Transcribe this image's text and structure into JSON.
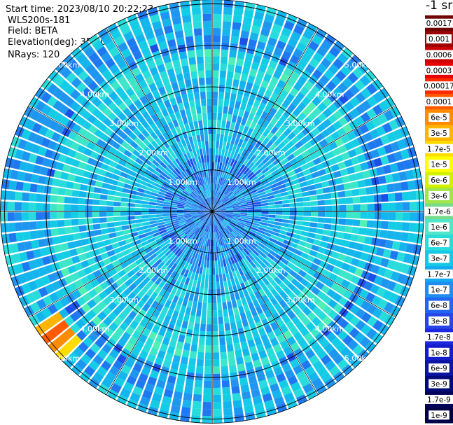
{
  "header": {
    "start_time": "Start time: 2023/08/10 20:22:23",
    "instrument": "WLS200s-181",
    "field": "Field: BETA",
    "elevation": "Elevation(deg): 35.30",
    "nrays": "NRays: 120"
  },
  "colorbar": {
    "title": "-1 sr",
    "labels": [
      "0.0017",
      "0.001",
      "0.0006",
      "0.0003",
      "0.00017",
      "0.0001",
      "6e-5",
      "3e-5",
      "1.7e-5",
      "1e-5",
      "6e-6",
      "3e-6",
      "1.7e-6",
      "1e-6",
      "6e-7",
      "3e-7",
      "1.7e-7",
      "1e-7",
      "6e-8",
      "3e-8",
      "1.7e-8",
      "1e-8",
      "6e-9",
      "3e-9",
      "1.7e-9",
      "1e-9"
    ],
    "colors": [
      "#6e0000",
      "#9c0000",
      "#c80000",
      "#e60000",
      "#ff2a00",
      "#ff5a00",
      "#ff8c00",
      "#ffb400",
      "#ffdc00",
      "#ffff00",
      "#d2f000",
      "#a0e64b",
      "#78dc8c",
      "#50e6c8",
      "#28dcdc",
      "#14c8e6",
      "#14aaf0",
      "#1e8cf0",
      "#2364f0",
      "#2846e6",
      "#1e28dc",
      "#141ec8",
      "#0a14a0",
      "#000a78",
      "#00005a",
      "#000046"
    ]
  },
  "chart_data": {
    "type": "heatmap",
    "projection": "polar-ppi",
    "field": "BETA",
    "units": "-1 sr",
    "elevation_deg": 35.3,
    "nrays": 120,
    "range_rings_km": [
      1,
      2,
      3,
      4,
      5
    ],
    "ring_labels": [
      "1.00km",
      "2.00km",
      "3.00km",
      "4.00km",
      "5.00km"
    ],
    "spoke_step_deg": 30,
    "max_range_km": 5.1,
    "feature": {
      "description_free_values": true,
      "azimuth_deg_range": [
        225,
        238
      ],
      "range_km": [
        4.4,
        5.1
      ],
      "peak_beta": 0.0003
    }
  }
}
